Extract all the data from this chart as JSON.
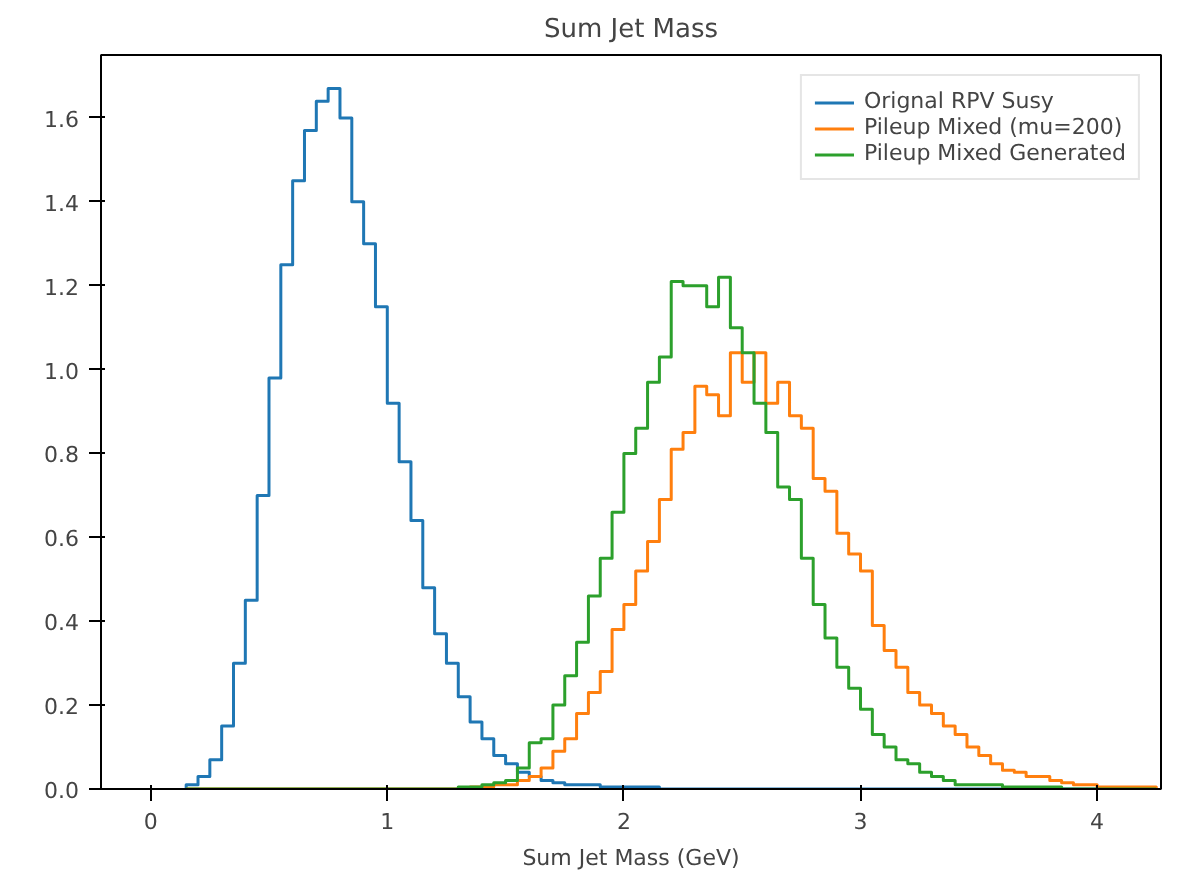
{
  "chart_data": {
    "type": "histogram",
    "title": "Sum Jet Mass",
    "xlabel": "Sum Jet Mass (GeV)",
    "xlim": [
      -0.21,
      4.27
    ],
    "ylim": [
      0,
      1.75
    ],
    "xticks": [
      0,
      1,
      2,
      3,
      4
    ],
    "yticks": [
      {
        "value": 0,
        "label": "0.0"
      },
      {
        "value": 0.2,
        "label": "0.2"
      },
      {
        "value": 0.4,
        "label": "0.4"
      },
      {
        "value": 0.6,
        "label": "0.6"
      },
      {
        "value": 0.8,
        "label": "0.8"
      },
      {
        "value": 1.0,
        "label": "1.0"
      },
      {
        "value": 1.2,
        "label": "1.2"
      },
      {
        "value": 1.4,
        "label": "1.4"
      },
      {
        "value": 1.6,
        "label": "1.6"
      }
    ],
    "legend": "top right",
    "bins": [
      0.15,
      0.2,
      0.25,
      0.3,
      0.35,
      0.4,
      0.45,
      0.5,
      0.55,
      0.6,
      0.65,
      0.7,
      0.75,
      0.8,
      0.85,
      0.9,
      0.95,
      1.0,
      1.05,
      1.1,
      1.15,
      1.2,
      1.25,
      1.3,
      1.35,
      1.4,
      1.45,
      1.5,
      1.55,
      1.6,
      1.65,
      1.7,
      1.75,
      1.8,
      1.85,
      1.9,
      1.95,
      2.0,
      2.05,
      2.1,
      2.15,
      2.2,
      2.25,
      2.3,
      2.35,
      2.4,
      2.45,
      2.5,
      2.55,
      2.6,
      2.65,
      2.7,
      2.75,
      2.8,
      2.85,
      2.9,
      2.95,
      3.0,
      3.05,
      3.1,
      3.15,
      3.2,
      3.25,
      3.3,
      3.35,
      3.4,
      3.45,
      3.5,
      3.55,
      3.6,
      3.65,
      3.7,
      3.75,
      3.8,
      3.85,
      3.9,
      3.95,
      4.0,
      4.05,
      4.1,
      4.15,
      4.2,
      4.25
    ],
    "series": [
      {
        "name": "Orignal RPV Susy",
        "color": "#1f77b4",
        "values": [
          0.01,
          0.03,
          0.07,
          0.15,
          0.3,
          0.45,
          0.7,
          0.98,
          1.25,
          1.45,
          1.57,
          1.64,
          1.67,
          1.6,
          1.4,
          1.3,
          1.15,
          0.92,
          0.78,
          0.64,
          0.48,
          0.37,
          0.3,
          0.22,
          0.16,
          0.12,
          0.08,
          0.06,
          0.04,
          0.03,
          0.02,
          0.015,
          0.01,
          0.01,
          0.01,
          0.005,
          0.005,
          0.005,
          0.005,
          0.005,
          0,
          0,
          0,
          0,
          0,
          0,
          0,
          0,
          0,
          0,
          0,
          0,
          0,
          0,
          0,
          0,
          0,
          0,
          0,
          0,
          0,
          0,
          0,
          0,
          0,
          0,
          0,
          0,
          0,
          0,
          0,
          0,
          0,
          0,
          0,
          0,
          0,
          0,
          0,
          0,
          0,
          0
        ]
      },
      {
        "name": "Pileup Mixed (mu=200)",
        "color": "#ff7f0e",
        "values": [
          0,
          0,
          0,
          0,
          0,
          0,
          0,
          0,
          0,
          0,
          0,
          0,
          0,
          0,
          0,
          0,
          0,
          0,
          0,
          0,
          0,
          0,
          0,
          0,
          0.005,
          0.005,
          0.01,
          0.01,
          0.02,
          0.03,
          0.05,
          0.09,
          0.12,
          0.18,
          0.23,
          0.28,
          0.38,
          0.44,
          0.52,
          0.59,
          0.69,
          0.81,
          0.85,
          0.96,
          0.94,
          0.89,
          1.04,
          0.97,
          1.04,
          0.92,
          0.97,
          0.89,
          0.86,
          0.74,
          0.71,
          0.61,
          0.56,
          0.52,
          0.39,
          0.33,
          0.29,
          0.23,
          0.2,
          0.18,
          0.15,
          0.13,
          0.1,
          0.08,
          0.06,
          0.045,
          0.04,
          0.03,
          0.03,
          0.02,
          0.015,
          0.01,
          0.01,
          0.005,
          0.005,
          0.005,
          0.005,
          0.005
        ]
      },
      {
        "name": "Pileup Mixed Generated",
        "color": "#2ca02c",
        "values": [
          0,
          0,
          0,
          0,
          0,
          0,
          0,
          0,
          0,
          0,
          0,
          0,
          0,
          0,
          0,
          0,
          0,
          0,
          0,
          0,
          0,
          0,
          0,
          0.005,
          0.005,
          0.01,
          0.015,
          0.02,
          0.05,
          0.11,
          0.12,
          0.2,
          0.27,
          0.35,
          0.46,
          0.55,
          0.66,
          0.8,
          0.86,
          0.97,
          1.03,
          1.21,
          1.2,
          1.2,
          1.15,
          1.22,
          1.1,
          1.04,
          0.92,
          0.85,
          0.72,
          0.69,
          0.55,
          0.44,
          0.36,
          0.29,
          0.24,
          0.19,
          0.13,
          0.1,
          0.07,
          0.06,
          0.04,
          0.03,
          0.02,
          0.01,
          0.01,
          0.01,
          0.01,
          0.005,
          0.005,
          0.005,
          0.005,
          0.005,
          0,
          0,
          0,
          0,
          0,
          0,
          0,
          0
        ]
      }
    ]
  }
}
